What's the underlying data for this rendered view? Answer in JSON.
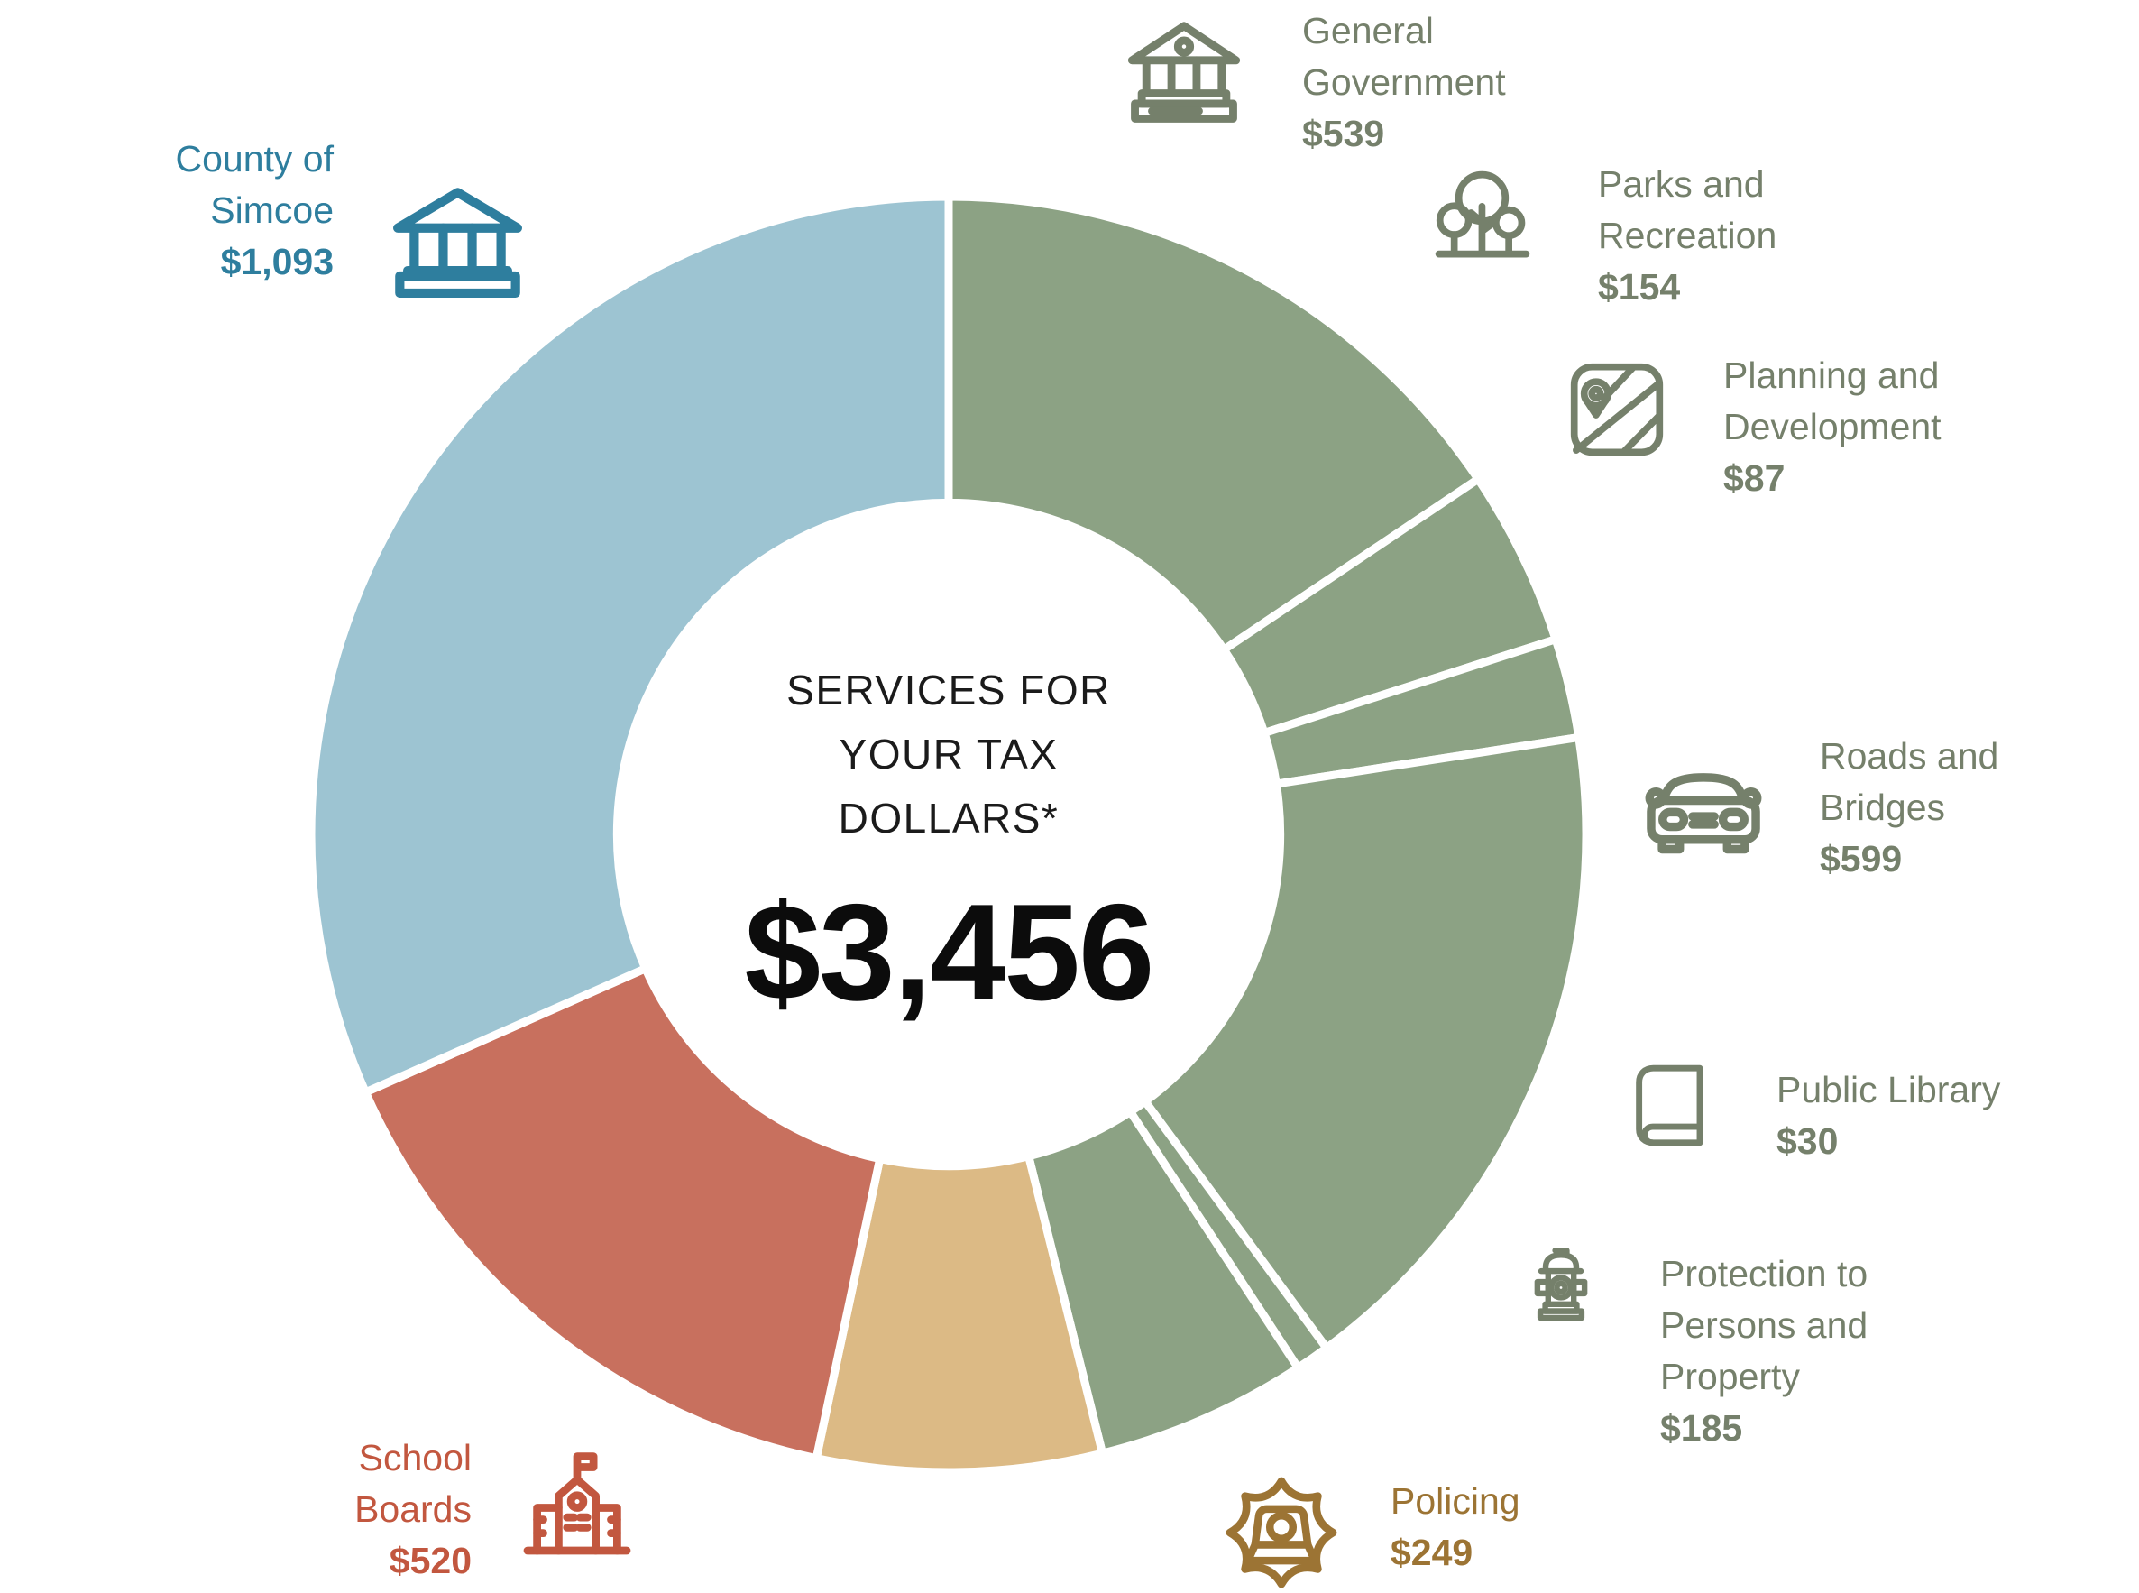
{
  "center": {
    "title": "SERVICES FOR\nYOUR TAX\nDOLLARS*",
    "total": "$3,456"
  },
  "chart_data": {
    "type": "pie",
    "variant": "donut",
    "title": "SERVICES FOR YOUR TAX DOLLARS*",
    "total_label": "$3,456",
    "total_value": 3456,
    "units": "dollars",
    "start_position": "top",
    "direction": "clockwise",
    "inner_radius_ratio": 0.52,
    "gap_color": "#ffffff",
    "segments": [
      {
        "label": "General Government",
        "value": 539,
        "color": "#8ca284"
      },
      {
        "label": "Parks and Recreation",
        "value": 154,
        "color": "#8ca284"
      },
      {
        "label": "Planning and Development",
        "value": 87,
        "color": "#8ca284"
      },
      {
        "label": "Roads and Bridges",
        "value": 599,
        "color": "#8ca284"
      },
      {
        "label": "Public Library",
        "value": 30,
        "color": "#8ca284"
      },
      {
        "label": "Protection to Persons and Property",
        "value": 185,
        "color": "#8ca284"
      },
      {
        "label": "Policing",
        "value": 249,
        "color": "#dcba85"
      },
      {
        "label": "School Boards",
        "value": 520,
        "color": "#c8705e"
      },
      {
        "label": "County of Simcoe",
        "value": 1093,
        "color": "#9dc4d2"
      }
    ]
  },
  "legend": [
    {
      "id": "county-of-simcoe",
      "label": "County of\nSimcoe",
      "value": "$1,093",
      "icon": "bank-building-icon",
      "color": "#2e7e9e"
    },
    {
      "id": "general-government",
      "label": "General\nGovernment",
      "value": "$539",
      "icon": "government-building-icon",
      "color": "#75806b"
    },
    {
      "id": "parks-and-recreation",
      "label": "Parks and\nRecreation",
      "value": "$154",
      "icon": "trees-icon",
      "color": "#75806b"
    },
    {
      "id": "planning-and-development",
      "label": "Planning and\nDevelopment",
      "value": "$87",
      "icon": "map-icon",
      "color": "#75806b"
    },
    {
      "id": "roads-and-bridges",
      "label": "Roads and\nBridges",
      "value": "$599",
      "icon": "car-icon",
      "color": "#75806b"
    },
    {
      "id": "public-library",
      "label": "Public Library",
      "value": "$30",
      "icon": "book-icon",
      "color": "#75806b"
    },
    {
      "id": "protection-to-persons-and-property",
      "label": "Protection to\nPersons and\nProperty",
      "value": "$185",
      "icon": "fire-hydrant-icon",
      "color": "#75806b"
    },
    {
      "id": "policing",
      "label": "Policing",
      "value": "$249",
      "icon": "police-badge-icon",
      "color": "#9c7434"
    },
    {
      "id": "school-boards",
      "label": "School\nBoards",
      "value": "$520",
      "icon": "school-icon",
      "color": "#c2573f"
    }
  ]
}
